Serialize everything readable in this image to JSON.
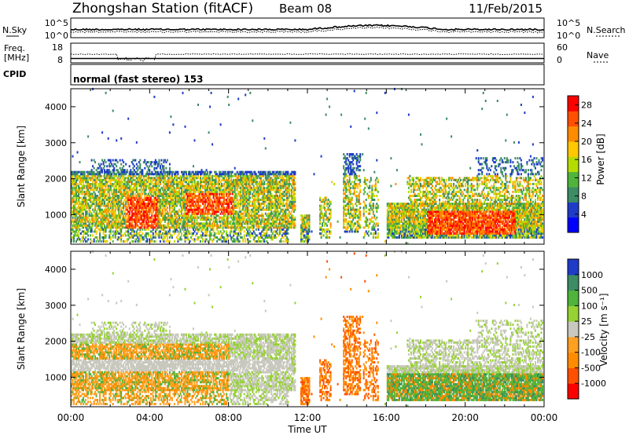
{
  "header": {
    "title": "Zhongshan Station (fitACF)",
    "beam": "Beam 08",
    "date": "11/Feb/2015"
  },
  "panels": {
    "nsky": {
      "label": "N.Sky",
      "ticks": [
        "10^5",
        "10^0"
      ],
      "right_label": "N.Search",
      "right_ticks": [
        "10^5",
        "10^0"
      ]
    },
    "freq": {
      "label_line1": "Freq.",
      "label_line2": "[MHz]",
      "ticks": [
        "18",
        "8"
      ],
      "right_label": "Nave",
      "right_ticks": [
        "60",
        "0"
      ]
    },
    "cpid": {
      "label": "CPID",
      "text": "normal (fast stereo) 153"
    }
  },
  "colors": {
    "power": [
      "#0000ff",
      "#1e3cc8",
      "#3c8c64",
      "#50b43c",
      "#b4dc00",
      "#ffc800",
      "#ff8c00",
      "#ff5000",
      "#ff0000"
    ],
    "velocity_pos": [
      "#1e3cc8",
      "#3c8c64",
      "#50b43c",
      "#96d232"
    ],
    "velocity_neutral": "#c8c8be",
    "velocity_neg": [
      "#ffa020",
      "#ff8c00",
      "#ff5000",
      "#ff0000"
    ]
  },
  "chart_data": [
    {
      "type": "heatmap",
      "name": "power",
      "ylabel": "Slant Range [km]",
      "yticks": [
        "4000",
        "3000",
        "2000",
        "1000"
      ],
      "ylim": [
        180,
        4500
      ],
      "xlim": [
        0,
        24
      ],
      "xticks": [
        "00:00",
        "04:00",
        "08:00",
        "12:00",
        "16:00",
        "20:00",
        "00:00"
      ],
      "colorbar_label": "Power [dB]",
      "colorbar_ticks": [
        "28",
        "24",
        "20",
        "16",
        "12",
        "8",
        "4"
      ],
      "colorbar_range": [
        0,
        30
      ]
    },
    {
      "type": "heatmap",
      "name": "velocity",
      "ylabel": "Slant Range [km]",
      "yticks": [
        "4000",
        "3000",
        "2000",
        "1000"
      ],
      "ylim": [
        180,
        4500
      ],
      "xlim": [
        0,
        24
      ],
      "xlabel": "Time UT",
      "xticks": [
        "00:00",
        "04:00",
        "08:00",
        "12:00",
        "16:00",
        "20:00",
        "00:00"
      ],
      "colorbar_label": "Velocity [m s⁻¹]",
      "colorbar_ticks": [
        "1000",
        "500",
        "100",
        "25",
        "-25",
        "-100",
        "-500",
        "-1000"
      ]
    }
  ]
}
